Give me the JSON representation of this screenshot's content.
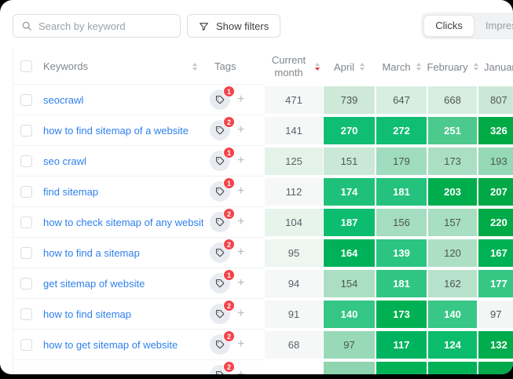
{
  "toolbar": {
    "search_placeholder": "Search by keyword",
    "filters_label": "Show filters",
    "toggle": {
      "active_label": "Clicks",
      "inactive_label": "Impressions"
    }
  },
  "table": {
    "headers": {
      "keywords": "Keywords",
      "tags": "Tags",
      "current_line1": "Current",
      "current_line2": "month"
    },
    "months": [
      "April",
      "March",
      "February",
      "January"
    ],
    "sort": {
      "active_column": "Current month",
      "direction": "desc"
    },
    "rows": [
      {
        "keyword": "seocrawl",
        "tag_count": "1",
        "current": "471",
        "current_bg": "#f6f7f7",
        "cells": [
          {
            "v": "739",
            "bg": "#cfe9d9",
            "light": false
          },
          {
            "v": "647",
            "bg": "#d8eee1",
            "light": false
          },
          {
            "v": "668",
            "bg": "#d7eee0",
            "light": false
          },
          {
            "v": "807",
            "bg": "#cbe8d6",
            "light": false
          }
        ]
      },
      {
        "keyword": "how to find sitemap of a website",
        "tag_count": "2",
        "current": "141",
        "current_bg": "#f6f7f7",
        "cells": [
          {
            "v": "270",
            "bg": "#0fbe72",
            "light": true
          },
          {
            "v": "272",
            "bg": "#0fbe72",
            "light": true
          },
          {
            "v": "251",
            "bg": "#4cc98d",
            "light": true
          },
          {
            "v": "326",
            "bg": "#00ab46",
            "light": true
          }
        ]
      },
      {
        "keyword": "seo crawl",
        "tag_count": "1",
        "current": "125",
        "current_bg": "#e4f3ea",
        "cells": [
          {
            "v": "151",
            "bg": "#c9e8d5",
            "light": false
          },
          {
            "v": "179",
            "bg": "#a0dcbe",
            "light": false
          },
          {
            "v": "173",
            "bg": "#aadfc3",
            "light": false
          },
          {
            "v": "193",
            "bg": "#95d9b6",
            "light": false
          }
        ]
      },
      {
        "keyword": "find sitemap",
        "tag_count": "1",
        "current": "112",
        "current_bg": "#f6f7f7",
        "cells": [
          {
            "v": "174",
            "bg": "#1fc17a",
            "light": true
          },
          {
            "v": "181",
            "bg": "#24c27d",
            "light": true
          },
          {
            "v": "203",
            "bg": "#00ad4d",
            "light": true
          },
          {
            "v": "207",
            "bg": "#00a945",
            "light": true
          }
        ]
      },
      {
        "keyword": "how to check sitemap of any website",
        "tag_count": "2",
        "current": "104",
        "current_bg": "#e6f4eb",
        "cells": [
          {
            "v": "187",
            "bg": "#0cbd6f",
            "light": true
          },
          {
            "v": "156",
            "bg": "#a5ddc0",
            "light": false
          },
          {
            "v": "157",
            "bg": "#a8dec2",
            "light": false
          },
          {
            "v": "220",
            "bg": "#00aa46",
            "light": true
          }
        ]
      },
      {
        "keyword": "how to find a sitemap",
        "tag_count": "2",
        "current": "95",
        "current_bg": "#edf6f0",
        "cells": [
          {
            "v": "164",
            "bg": "#00b159",
            "light": true
          },
          {
            "v": "139",
            "bg": "#2cc481",
            "light": true
          },
          {
            "v": "120",
            "bg": "#addfc5",
            "light": false
          },
          {
            "v": "167",
            "bg": "#00b254",
            "light": true
          }
        ]
      },
      {
        "keyword": "get sitemap of website",
        "tag_count": "1",
        "current": "94",
        "current_bg": "#f6f7f7",
        "cells": [
          {
            "v": "154",
            "bg": "#abdfc3",
            "light": false
          },
          {
            "v": "181",
            "bg": "#30c583",
            "light": true
          },
          {
            "v": "162",
            "bg": "#b6e2cb",
            "light": false
          },
          {
            "v": "177",
            "bg": "#35c684",
            "light": true
          }
        ]
      },
      {
        "keyword": "how to find sitemap",
        "tag_count": "2",
        "current": "91",
        "current_bg": "#f6f7f7",
        "cells": [
          {
            "v": "140",
            "bg": "#33c684",
            "light": true
          },
          {
            "v": "173",
            "bg": "#00b052",
            "light": true
          },
          {
            "v": "140",
            "bg": "#38c786",
            "light": true
          },
          {
            "v": "97",
            "bg": "#f3f6f4",
            "light": false
          }
        ]
      },
      {
        "keyword": "how to get sitemap of website",
        "tag_count": "2",
        "current": "68",
        "current_bg": "#f6f7f7",
        "cells": [
          {
            "v": "97",
            "bg": "#98d9b7",
            "light": false
          },
          {
            "v": "117",
            "bg": "#00b45f",
            "light": true
          },
          {
            "v": "124",
            "bg": "#0bbc6c",
            "light": true
          },
          {
            "v": "132",
            "bg": "#00ac4b",
            "light": true
          }
        ]
      },
      {
        "keyword": "",
        "tag_count": "2",
        "current": "",
        "current_bg": "#ffffff",
        "partial": true,
        "cells": [
          {
            "v": "",
            "bg": "#8fd5af",
            "light": false
          },
          {
            "v": "",
            "bg": "#00b357",
            "light": true
          },
          {
            "v": "",
            "bg": "#00b357",
            "light": true
          },
          {
            "v": "",
            "bg": "#00a94c",
            "light": true
          }
        ]
      }
    ]
  },
  "colors": {
    "accent_green_dark": "#00a945",
    "accent_green_mid": "#0fbe72",
    "accent_green_light": "#cfe9d9",
    "badge_red": "#f4434a",
    "link_blue": "#2f80ed",
    "sort_active_red": "#e63950"
  }
}
